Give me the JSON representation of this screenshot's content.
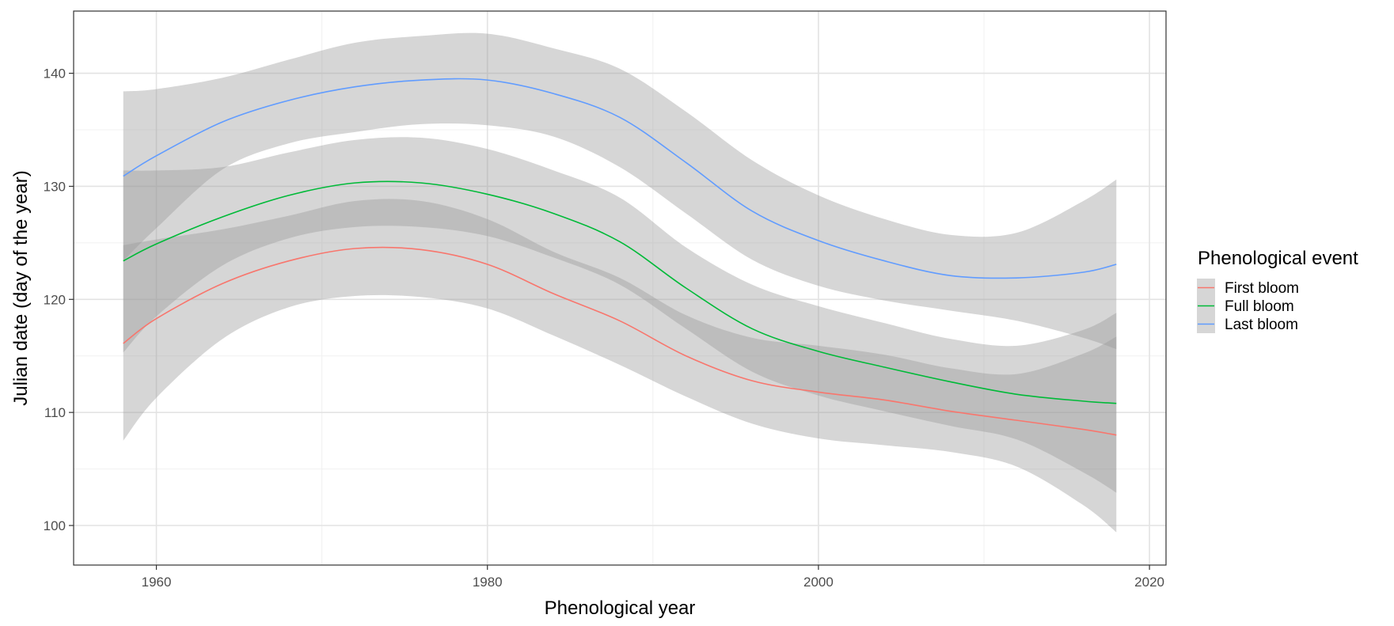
{
  "chart_data": {
    "type": "line",
    "xlabel": "Phenological year",
    "ylabel": "Julian date (day of the year)",
    "xlim": [
      1955,
      2021
    ],
    "ylim": [
      96.5,
      145.5
    ],
    "x_ticks": [
      1960,
      1980,
      2000,
      2020
    ],
    "y_ticks": [
      100,
      110,
      120,
      130,
      140
    ],
    "grid": true,
    "legend_title": "Phenological event",
    "legend_position": "right",
    "band_color": "#999999",
    "band_opacity": 0.4,
    "series": [
      {
        "name": "First bloom",
        "color": "#F8766D",
        "x": [
          1958,
          1960,
          1964,
          1968,
          1972,
          1976,
          1980,
          1984,
          1988,
          1992,
          1996,
          2000,
          2004,
          2008,
          2012,
          2016,
          2018
        ],
        "y": [
          116.1,
          118.3,
          121.4,
          123.4,
          124.5,
          124.4,
          123.1,
          120.5,
          118.1,
          115.0,
          112.8,
          111.8,
          111.1,
          110.1,
          109.3,
          108.5,
          108.0
        ],
        "lower": [
          107.5,
          111.3,
          116.5,
          119.3,
          120.3,
          120.2,
          119.2,
          116.8,
          114.2,
          111.4,
          109.0,
          107.7,
          107.1,
          106.5,
          105.2,
          101.8,
          99.4
        ],
        "upper": [
          124.8,
          125.3,
          126.2,
          127.4,
          128.7,
          128.7,
          127.1,
          124.2,
          121.9,
          118.6,
          116.6,
          115.9,
          115.1,
          113.9,
          113.4,
          115.2,
          116.7
        ]
      },
      {
        "name": "Full bloom",
        "color": "#00BA38",
        "x": [
          1958,
          1960,
          1964,
          1968,
          1972,
          1976,
          1980,
          1984,
          1988,
          1992,
          1996,
          2000,
          2004,
          2008,
          2012,
          2016,
          2018
        ],
        "y": [
          123.4,
          124.9,
          127.3,
          129.2,
          130.3,
          130.3,
          129.3,
          127.6,
          125.1,
          121.0,
          117.4,
          115.4,
          114.0,
          112.7,
          111.6,
          111.0,
          110.8
        ],
        "lower": [
          115.3,
          118.5,
          123.0,
          125.4,
          126.4,
          126.4,
          125.6,
          123.7,
          121.3,
          117.4,
          113.6,
          111.5,
          110.1,
          108.8,
          107.6,
          104.7,
          102.9
        ],
        "upper": [
          131.4,
          131.4,
          131.7,
          133.0,
          134.1,
          134.3,
          133.3,
          131.4,
          129.0,
          124.6,
          121.3,
          119.4,
          117.9,
          116.5,
          115.9,
          117.3,
          118.8
        ]
      },
      {
        "name": "Last bloom",
        "color": "#619CFF",
        "x": [
          1958,
          1960,
          1964,
          1968,
          1972,
          1976,
          1980,
          1984,
          1988,
          1992,
          1996,
          2000,
          2004,
          2008,
          2012,
          2016,
          2018
        ],
        "y": [
          130.9,
          132.7,
          135.7,
          137.6,
          138.8,
          139.4,
          139.4,
          138.2,
          136.1,
          132.1,
          127.8,
          125.2,
          123.4,
          122.1,
          121.9,
          122.4,
          123.1
        ],
        "lower": [
          123.4,
          126.3,
          131.5,
          133.8,
          134.8,
          135.5,
          135.4,
          134.4,
          131.7,
          127.6,
          123.5,
          121.2,
          119.9,
          119.0,
          118.1,
          116.6,
          115.6
        ],
        "upper": [
          138.4,
          138.6,
          139.6,
          141.2,
          142.7,
          143.3,
          143.5,
          142.2,
          140.4,
          136.6,
          132.3,
          129.2,
          127.1,
          125.7,
          125.9,
          128.7,
          130.6
        ]
      }
    ]
  }
}
